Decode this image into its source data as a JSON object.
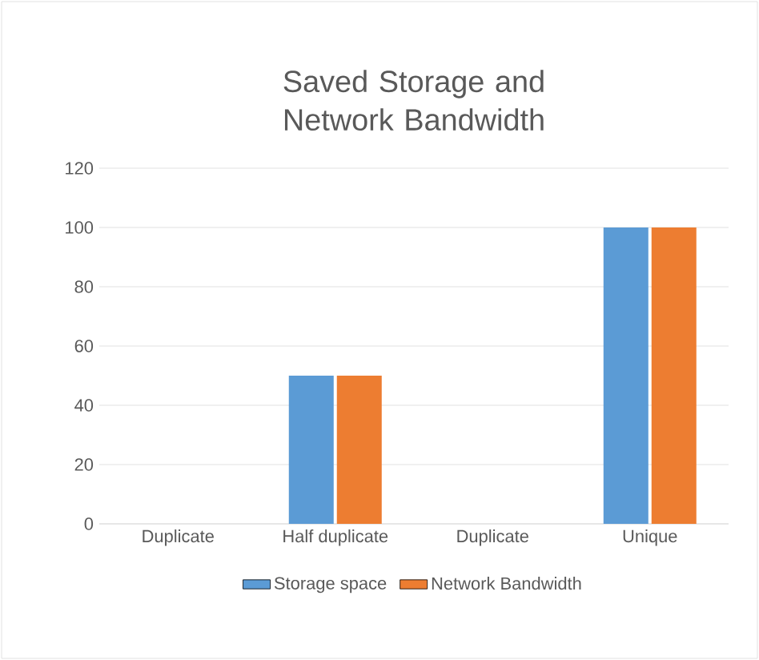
{
  "chart_data": {
    "type": "bar",
    "title": "Saved Storage and Network Bandwidth",
    "categories": [
      "Duplicate",
      "Half duplicate",
      "Duplicate",
      "Unique"
    ],
    "series": [
      {
        "name": "Storage space",
        "color": "#5b9bd5",
        "values": [
          0,
          50,
          0,
          100
        ]
      },
      {
        "name": "Network Bandwidth",
        "color": "#ed7d31",
        "values": [
          0,
          50,
          0,
          100
        ]
      }
    ],
    "ylim": [
      0,
      120
    ],
    "yticks": [
      0,
      20,
      40,
      60,
      80,
      100,
      120
    ],
    "grid": "y",
    "legend": "bottom"
  }
}
